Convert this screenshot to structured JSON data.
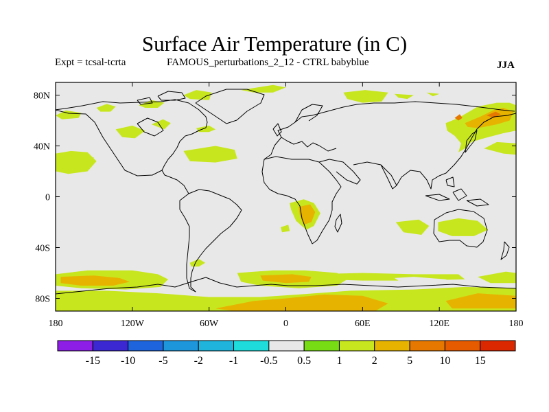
{
  "header": {
    "title": "Surface Air Temperature (in C)",
    "experiment": "Expt = tcsal-tcrta",
    "description": "FAMOUS_perturbations_2_12 - CTRL babyblue",
    "season": "JJA"
  },
  "chart_data": {
    "type": "heatmap",
    "title": "Surface Air Temperature (in C)",
    "projection": "cylindrical equidistant",
    "x_range": [
      -180,
      180
    ],
    "y_range": [
      -90,
      90
    ],
    "x_ticks": [
      {
        "v": -180,
        "label": "180"
      },
      {
        "v": -120,
        "label": "120W"
      },
      {
        "v": -60,
        "label": "60W"
      },
      {
        "v": 0,
        "label": "0"
      },
      {
        "v": 60,
        "label": "60E"
      },
      {
        "v": 120,
        "label": "120E"
      },
      {
        "v": 180,
        "label": "180"
      }
    ],
    "y_ticks": [
      {
        "v": 80,
        "label": "80N"
      },
      {
        "v": 40,
        "label": "40N"
      },
      {
        "v": 0,
        "label": "0"
      },
      {
        "v": -40,
        "label": "40S"
      },
      {
        "v": -80,
        "label": "80S"
      }
    ],
    "background_color": "#e8e8e8",
    "colorbar": {
      "colors": [
        "#8c1ee6",
        "#3c28d2",
        "#1e64dc",
        "#1e96dc",
        "#1eb4dc",
        "#1edcdc",
        "#e8e8e8",
        "#78dc14",
        "#c8e61e",
        "#e6b400",
        "#e67800",
        "#e65a00",
        "#dc2800"
      ],
      "labels": [
        "-15",
        "-10",
        "-5",
        "-2",
        "-1",
        "-0.5",
        "0.5",
        "1",
        "2",
        "5",
        "10",
        "15"
      ]
    },
    "anomaly_regions": [
      {
        "level": "1",
        "pts": [
          [
            -180,
            -61
          ],
          [
            -155,
            -58
          ],
          [
            -120,
            -58
          ],
          [
            -100,
            -61
          ],
          [
            -92,
            -65
          ],
          [
            -98,
            -71
          ],
          [
            -125,
            -73
          ],
          [
            -160,
            -72
          ],
          [
            -180,
            -70
          ]
        ]
      },
      {
        "level": "2",
        "pts": [
          [
            -176,
            -63
          ],
          [
            -150,
            -62
          ],
          [
            -130,
            -64
          ],
          [
            -122,
            -67
          ],
          [
            -135,
            -70
          ],
          [
            -160,
            -70
          ],
          [
            -176,
            -68
          ]
        ]
      },
      {
        "level": "1",
        "pts": [
          [
            -180,
            -74
          ],
          [
            -140,
            -74
          ],
          [
            -100,
            -76
          ],
          [
            -60,
            -79
          ],
          [
            -20,
            -79
          ],
          [
            10,
            -77
          ],
          [
            50,
            -74
          ],
          [
            100,
            -73
          ],
          [
            140,
            -71
          ],
          [
            180,
            -72
          ],
          [
            180,
            -90
          ],
          [
            -180,
            -90
          ]
        ]
      },
      {
        "level": "2",
        "pts": [
          [
            -55,
            -88
          ],
          [
            -25,
            -82
          ],
          [
            0,
            -80
          ],
          [
            30,
            -77
          ],
          [
            60,
            -78
          ],
          [
            80,
            -84
          ],
          [
            70,
            -90
          ],
          [
            -40,
            -90
          ]
        ]
      },
      {
        "level": "2",
        "pts": [
          [
            125,
            -82
          ],
          [
            150,
            -76
          ],
          [
            180,
            -78
          ],
          [
            180,
            -88
          ],
          [
            130,
            -88
          ]
        ]
      },
      {
        "level": "1",
        "pts": [
          [
            -38,
            -60
          ],
          [
            -10,
            -58
          ],
          [
            15,
            -58
          ],
          [
            40,
            -60
          ],
          [
            48,
            -65
          ],
          [
            40,
            -70
          ],
          [
            10,
            -72
          ],
          [
            -20,
            -70
          ],
          [
            -35,
            -67
          ]
        ]
      },
      {
        "level": "2",
        "pts": [
          [
            -20,
            -62
          ],
          [
            5,
            -61
          ],
          [
            20,
            -63
          ],
          [
            18,
            -67
          ],
          [
            0,
            -68
          ],
          [
            -18,
            -66
          ]
        ]
      },
      {
        "level": "1",
        "pts": [
          [
            20,
            -61
          ],
          [
            60,
            -60
          ],
          [
            100,
            -61
          ],
          [
            135,
            -61
          ],
          [
            140,
            -65
          ],
          [
            100,
            -66
          ],
          [
            60,
            -66
          ],
          [
            30,
            -65
          ]
        ]
      },
      {
        "level": "-0.5",
        "pts": [
          [
            -70,
            -64
          ],
          [
            -62,
            -60
          ],
          [
            -52,
            -62
          ],
          [
            -56,
            -68
          ],
          [
            -68,
            -69
          ]
        ]
      },
      {
        "level": "-0.5",
        "pts": [
          [
            85,
            -64
          ],
          [
            100,
            -63
          ],
          [
            125,
            -65
          ],
          [
            130,
            -67
          ],
          [
            105,
            -67
          ],
          [
            88,
            -66
          ]
        ]
      },
      {
        "level": "1",
        "pts": [
          [
            150,
            -63
          ],
          [
            172,
            -59
          ],
          [
            180,
            -60
          ],
          [
            180,
            -68
          ],
          [
            160,
            -68
          ]
        ]
      },
      {
        "level": "1",
        "pts": [
          [
            -180,
            34
          ],
          [
            -168,
            36
          ],
          [
            -155,
            35
          ],
          [
            -148,
            28
          ],
          [
            -155,
            20
          ],
          [
            -170,
            18
          ],
          [
            -180,
            20
          ]
        ]
      },
      {
        "level": "1",
        "pts": [
          [
            -133,
            53
          ],
          [
            -120,
            56
          ],
          [
            -110,
            52
          ],
          [
            -118,
            46
          ],
          [
            -128,
            47
          ]
        ]
      },
      {
        "level": "1",
        "pts": [
          [
            -80,
            36
          ],
          [
            -55,
            40
          ],
          [
            -40,
            37
          ],
          [
            -38,
            30
          ],
          [
            -55,
            27
          ],
          [
            -75,
            28
          ]
        ]
      },
      {
        "level": "1",
        "pts": [
          [
            -80,
            80
          ],
          [
            -70,
            84
          ],
          [
            -58,
            82
          ],
          [
            -60,
            76
          ],
          [
            -75,
            77
          ]
        ]
      },
      {
        "level": "1",
        "pts": [
          [
            -35,
            84
          ],
          [
            -10,
            88
          ],
          [
            0,
            86
          ],
          [
            -10,
            82
          ],
          [
            -25,
            82
          ]
        ]
      },
      {
        "level": "1",
        "pts": [
          [
            -180,
            64
          ],
          [
            -172,
            68
          ],
          [
            -160,
            66
          ],
          [
            -162,
            62
          ],
          [
            -175,
            61
          ]
        ]
      },
      {
        "level": "1",
        "pts": [
          [
            -148,
            70
          ],
          [
            -140,
            73
          ],
          [
            -133,
            71
          ],
          [
            -137,
            67
          ],
          [
            -145,
            67
          ]
        ]
      },
      {
        "level": "1",
        "pts": [
          [
            -115,
            72
          ],
          [
            -105,
            76
          ],
          [
            -95,
            74
          ],
          [
            -100,
            70
          ],
          [
            -110,
            70
          ]
        ]
      },
      {
        "level": "1",
        "pts": [
          [
            -105,
            57
          ],
          [
            -96,
            61
          ],
          [
            -90,
            58
          ],
          [
            -95,
            53
          ]
        ]
      },
      {
        "level": "1",
        "pts": [
          [
            -70,
            54
          ],
          [
            -60,
            56
          ],
          [
            -55,
            53
          ],
          [
            -60,
            51
          ],
          [
            -68,
            51
          ]
        ]
      },
      {
        "level": "1",
        "pts": [
          [
            45,
            82
          ],
          [
            62,
            84
          ],
          [
            80,
            82
          ],
          [
            75,
            75
          ],
          [
            60,
            74
          ],
          [
            48,
            77
          ]
        ]
      },
      {
        "level": "1",
        "pts": [
          [
            85,
            81
          ],
          [
            100,
            80
          ],
          [
            95,
            77
          ],
          [
            88,
            78
          ]
        ]
      },
      {
        "level": "1",
        "pts": [
          [
            110,
            82
          ],
          [
            120,
            81
          ],
          [
            115,
            79
          ]
        ]
      },
      {
        "level": "1",
        "pts": [
          [
            125,
            58
          ],
          [
            135,
            62
          ],
          [
            140,
            65
          ],
          [
            150,
            71
          ],
          [
            165,
            74
          ],
          [
            175,
            74
          ],
          [
            180,
            72
          ],
          [
            180,
            52
          ],
          [
            170,
            50
          ],
          [
            155,
            46
          ],
          [
            145,
            43
          ],
          [
            140,
            38
          ],
          [
            135,
            35
          ],
          [
            137,
            42
          ],
          [
            132,
            48
          ],
          [
            126,
            52
          ]
        ]
      },
      {
        "level": "2",
        "pts": [
          [
            140,
            58
          ],
          [
            152,
            63
          ],
          [
            162,
            68
          ],
          [
            170,
            70
          ],
          [
            178,
            67
          ],
          [
            175,
            60
          ],
          [
            165,
            57
          ],
          [
            150,
            54
          ],
          [
            142,
            55
          ]
        ]
      },
      {
        "level": "5",
        "pts": [
          [
            157,
            64
          ],
          [
            164,
            67
          ],
          [
            168,
            65
          ],
          [
            163,
            62
          ]
        ]
      },
      {
        "level": "5",
        "pts": [
          [
            132,
            62
          ],
          [
            136,
            65
          ],
          [
            138,
            62
          ],
          [
            135,
            60
          ]
        ]
      },
      {
        "level": "1",
        "pts": [
          [
            155,
            38
          ],
          [
            170,
            34
          ],
          [
            180,
            33
          ],
          [
            180,
            42
          ],
          [
            165,
            43
          ]
        ]
      },
      {
        "level": "1",
        "pts": [
          [
            86,
            -20
          ],
          [
            104,
            -18
          ],
          [
            112,
            -23
          ],
          [
            106,
            -30
          ],
          [
            92,
            -28
          ]
        ]
      },
      {
        "level": "1",
        "pts": [
          [
            119,
            -20
          ],
          [
            135,
            -17
          ],
          [
            150,
            -19
          ],
          [
            158,
            -26
          ],
          [
            147,
            -31
          ],
          [
            130,
            -31
          ],
          [
            119,
            -27
          ]
        ]
      },
      {
        "level": "1",
        "pts": [
          [
            3,
            -5
          ],
          [
            14,
            -2
          ],
          [
            22,
            -5
          ],
          [
            27,
            -13
          ],
          [
            22,
            -23
          ],
          [
            16,
            -26
          ],
          [
            8,
            -19
          ],
          [
            4,
            -10
          ]
        ]
      },
      {
        "level": "2",
        "pts": [
          [
            10,
            -8
          ],
          [
            19,
            -6
          ],
          [
            23,
            -12
          ],
          [
            20,
            -20
          ],
          [
            14,
            -22
          ],
          [
            11,
            -15
          ]
        ]
      },
      {
        "level": "1",
        "pts": [
          [
            -75,
            -52
          ],
          [
            -68,
            -49
          ],
          [
            -63,
            -52
          ],
          [
            -68,
            -55
          ],
          [
            -74,
            -55
          ]
        ]
      },
      {
        "level": "1",
        "pts": [
          [
            -160,
            30
          ],
          [
            -150,
            31
          ],
          [
            -152,
            27
          ],
          [
            -158,
            27
          ]
        ]
      },
      {
        "level": "1",
        "pts": [
          [
            -4,
            -24
          ],
          [
            2,
            -22
          ],
          [
            3,
            -27
          ],
          [
            -3,
            -28
          ]
        ]
      },
      {
        "level": "-0.5",
        "pts": [
          [
            -25,
            69
          ],
          [
            -10,
            73
          ],
          [
            15,
            75
          ],
          [
            35,
            72
          ],
          [
            45,
            67
          ],
          [
            25,
            61
          ],
          [
            10,
            56
          ],
          [
            0,
            56
          ],
          [
            -10,
            57
          ],
          [
            -20,
            62
          ]
        ]
      },
      {
        "level": "-0.5",
        "pts": [
          [
            35,
            46
          ],
          [
            43,
            46
          ],
          [
            45,
            42
          ],
          [
            38,
            41
          ]
        ]
      },
      {
        "level": "-0.5",
        "pts": [
          [
            66,
            38
          ],
          [
            78,
            40
          ],
          [
            83,
            37
          ],
          [
            78,
            33
          ],
          [
            68,
            34
          ]
        ]
      },
      {
        "level": "-0.5",
        "pts": [
          [
            -72,
            0
          ],
          [
            -64,
            1
          ],
          [
            -62,
            -4
          ],
          0,
          [
            -69,
            -5
          ]
        ]
      },
      {
        "level": "-0.5",
        "pts": [
          [
            -56,
            -12
          ],
          [
            -48,
            -10
          ],
          [
            -45,
            -17
          ],
          [
            -52,
            -21
          ],
          [
            -56,
            -18
          ]
        ]
      },
      {
        "level": "-0.5",
        "pts": [
          [
            -140,
            12
          ],
          [
            -133,
            13
          ],
          [
            -135,
            9
          ]
        ]
      },
      {
        "level": "-0.5",
        "pts": [
          [
            -45,
            88
          ],
          [
            -35,
            89
          ],
          [
            -38,
            86
          ]
        ]
      }
    ]
  }
}
